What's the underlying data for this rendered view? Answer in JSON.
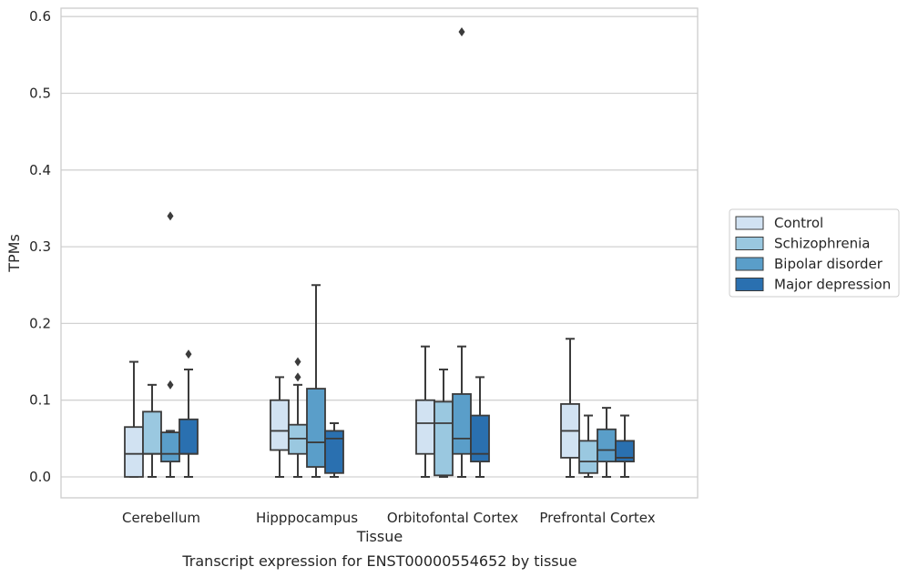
{
  "caption": "Transcript expression for ENST00000554652 by tissue",
  "chart_data": {
    "type": "box",
    "xlabel": "Tissue",
    "ylabel": "TPMs",
    "ylim": [
      -0.028,
      0.612
    ],
    "yticks": [
      0.0,
      0.1,
      0.2,
      0.3,
      0.4,
      0.5,
      0.6
    ],
    "ytick_labels": [
      "0.0",
      "0.1",
      "0.2",
      "0.3",
      "0.4",
      "0.5",
      "0.6"
    ],
    "grid": true,
    "legend_position": "right",
    "categories": [
      "Cerebellum",
      "Hipppocampus",
      "Orbitofontal Cortex",
      "Prefrontal Cortex"
    ],
    "series": [
      {
        "name": "Control",
        "color": "#d1e2f2",
        "boxes": [
          {
            "min": 0.0,
            "q1": 0.0,
            "median": 0.03,
            "q3": 0.065,
            "max": 0.15,
            "outliers": []
          },
          {
            "min": 0.0,
            "q1": 0.035,
            "median": 0.06,
            "q3": 0.1,
            "max": 0.13,
            "outliers": []
          },
          {
            "min": 0.0,
            "q1": 0.03,
            "median": 0.07,
            "q3": 0.1,
            "max": 0.17,
            "outliers": []
          },
          {
            "min": 0.0,
            "q1": 0.025,
            "median": 0.06,
            "q3": 0.095,
            "max": 0.18,
            "outliers": []
          }
        ]
      },
      {
        "name": "Schizophrenia",
        "color": "#9ac8e0",
        "boxes": [
          {
            "min": 0.0,
            "q1": 0.03,
            "median": 0.03,
            "q3": 0.085,
            "max": 0.12,
            "outliers": []
          },
          {
            "min": 0.0,
            "q1": 0.03,
            "median": 0.05,
            "q3": 0.068,
            "max": 0.12,
            "outliers": [
              0.13,
              0.15
            ]
          },
          {
            "min": 0.0,
            "q1": 0.002,
            "median": 0.07,
            "q3": 0.098,
            "max": 0.14,
            "outliers": []
          },
          {
            "min": 0.0,
            "q1": 0.005,
            "median": 0.02,
            "q3": 0.047,
            "max": 0.08,
            "outliers": []
          }
        ]
      },
      {
        "name": "Bipolar disorder",
        "color": "#5a9ec9",
        "boxes": [
          {
            "min": 0.0,
            "q1": 0.02,
            "median": 0.03,
            "q3": 0.058,
            "max": 0.06,
            "outliers": [
              0.12,
              0.34
            ]
          },
          {
            "min": 0.0,
            "q1": 0.013,
            "median": 0.045,
            "q3": 0.115,
            "max": 0.25,
            "outliers": []
          },
          {
            "min": 0.0,
            "q1": 0.03,
            "median": 0.05,
            "q3": 0.108,
            "max": 0.17,
            "outliers": [
              0.58
            ]
          },
          {
            "min": 0.0,
            "q1": 0.02,
            "median": 0.035,
            "q3": 0.062,
            "max": 0.09,
            "outliers": []
          }
        ]
      },
      {
        "name": "Major depression",
        "color": "#2a70b0",
        "boxes": [
          {
            "min": 0.0,
            "q1": 0.03,
            "median": 0.03,
            "q3": 0.075,
            "max": 0.14,
            "outliers": [
              0.16
            ]
          },
          {
            "min": 0.0,
            "q1": 0.005,
            "median": 0.05,
            "q3": 0.06,
            "max": 0.07,
            "outliers": []
          },
          {
            "min": 0.0,
            "q1": 0.02,
            "median": 0.03,
            "q3": 0.08,
            "max": 0.13,
            "outliers": []
          },
          {
            "min": 0.0,
            "q1": 0.02,
            "median": 0.025,
            "q3": 0.047,
            "max": 0.08,
            "outliers": []
          }
        ]
      }
    ]
  }
}
